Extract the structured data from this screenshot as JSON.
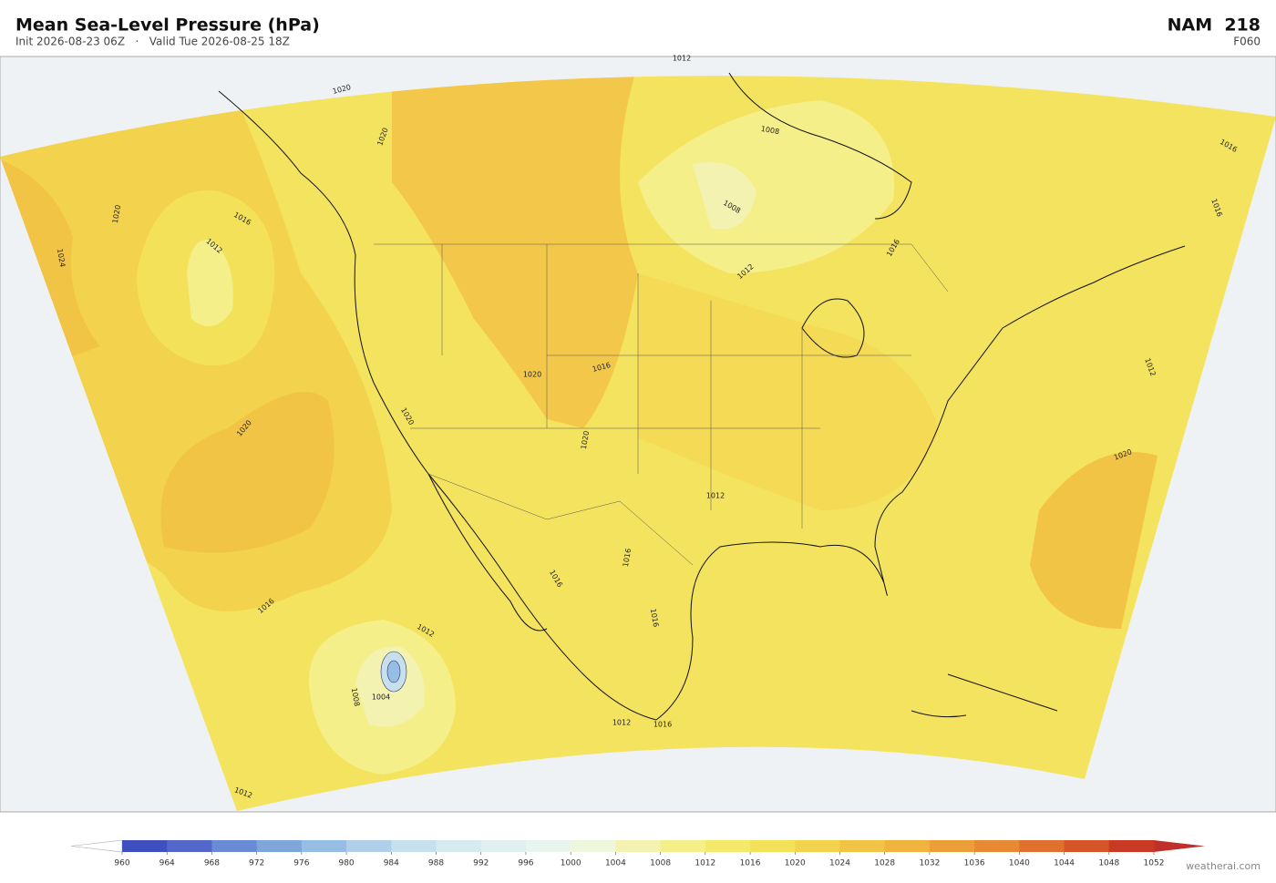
{
  "header": {
    "title": "Mean Sea-Level Pressure  (hPa)",
    "subtitle": "Init 2026-08-23 06Z   ·   Valid Tue 2026-08-25 18Z",
    "model": "NAM  218",
    "forecast_hour": "F060"
  },
  "map": {
    "contour_labels": [
      1020,
      1020,
      1020,
      1024,
      1016,
      1012,
      1020,
      1016,
      1012,
      1008,
      1004,
      1012,
      1020,
      1016,
      1020,
      1020,
      1012,
      1016,
      1016,
      1016,
      1012,
      1016,
      1008,
      1008,
      1012,
      1016,
      1012,
      1020,
      1016,
      1016,
      1012
    ]
  },
  "colorbar": {
    "ticks": [
      960,
      964,
      968,
      972,
      976,
      980,
      984,
      988,
      992,
      996,
      1000,
      1004,
      1008,
      1012,
      1016,
      1020,
      1024,
      1028,
      1032,
      1036,
      1040,
      1044,
      1048,
      1052
    ],
    "colors": [
      "#3f4fc0",
      "#5468cc",
      "#6a8ad6",
      "#7ea6d9",
      "#96bde3",
      "#b0d0ea",
      "#c6e0ee",
      "#d5ebf0",
      "#e0f0f0",
      "#e8f4ee",
      "#eef6dc",
      "#f3f2b0",
      "#f5ef8a",
      "#f4e96a",
      "#f4e15a",
      "#f3d24e",
      "#f2c446",
      "#efb33e",
      "#ec9f38",
      "#e88a34",
      "#e0702e",
      "#d55528",
      "#c83a24"
    ],
    "under_color": "#ffffff",
    "over_color": "#c0302a"
  },
  "credit": "weatherai.com"
}
